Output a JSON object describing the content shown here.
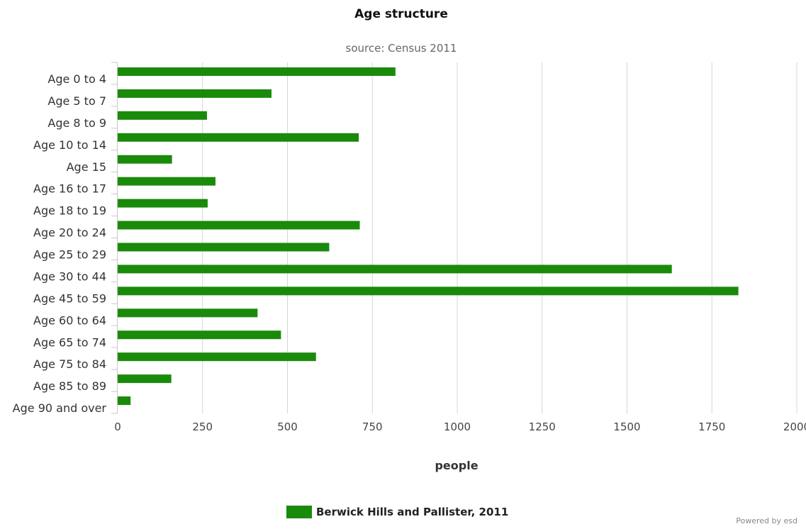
{
  "chart_data": {
    "type": "bar",
    "orientation": "horizontal",
    "title": "Age structure",
    "subtitle": "source: Census 2011",
    "xlabel": "people",
    "ylabel": "",
    "xlim": [
      0,
      2000
    ],
    "x_ticks": [
      0,
      250,
      500,
      750,
      1000,
      1250,
      1500,
      1750,
      2000
    ],
    "grid": true,
    "legend_position": "bottom-center",
    "categories": [
      "Age 0 to 4",
      "Age 5 to 7",
      "Age 8 to 9",
      "Age 10 to 14",
      "Age 15",
      "Age 16 to 17",
      "Age 18 to 19",
      "Age 20 to 24",
      "Age 25 to 29",
      "Age 30 to 44",
      "Age 45 to 59",
      "Age 60 to 64",
      "Age 65 to 74",
      "Age 75 to 84",
      "Age 85 to 89",
      "Age 90 and over"
    ],
    "series": [
      {
        "name": "Berwick Hills and Pallister, 2011",
        "color": "#1a8a0a",
        "values": [
          818,
          453,
          263,
          710,
          160,
          288,
          265,
          713,
          623,
          1632,
          1828,
          412,
          481,
          584,
          158,
          38
        ]
      }
    ]
  },
  "credit": "Powered by esd"
}
